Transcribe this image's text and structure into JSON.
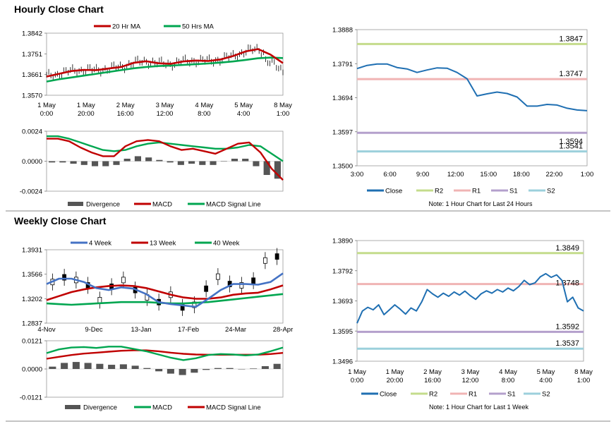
{
  "sections": {
    "hourly_title": "Hourly Close Chart",
    "weekly_title": "Weekly Close Chart"
  },
  "colors": {
    "ma_fast": "#c00000",
    "ma_slow": "#00a650",
    "ma_4week": "#4472c4",
    "close_line": "#1f6fb2",
    "r2": "#c4dc8c",
    "r1": "#f0b4b4",
    "s1": "#b4a0cc",
    "s2": "#9cd0dc",
    "divergence": "#555555"
  },
  "chart_data": [
    {
      "id": "hourly_price",
      "type": "line",
      "legend": [
        "20 Hr MA",
        "50 Hrs MA"
      ],
      "yticks": [
        "1.3842",
        "1.3751",
        "1.3661",
        "1.3570"
      ],
      "ylim": [
        1.357,
        1.3842
      ],
      "xticks": [
        [
          "1 May",
          "0:00"
        ],
        [
          "1 May",
          "20:00"
        ],
        [
          "2 May",
          "16:00"
        ],
        [
          "3 May",
          "12:00"
        ],
        [
          "4 May",
          "8:00"
        ],
        [
          "5 May",
          "4:00"
        ],
        [
          "8 May",
          "1:00"
        ]
      ],
      "series": [
        {
          "name": "20 Hr MA",
          "values": [
            1.3652,
            1.3664,
            1.3676,
            1.3681,
            1.368,
            1.3687,
            1.3694,
            1.3712,
            1.3719,
            1.371,
            1.3708,
            1.3718,
            1.3722,
            1.372,
            1.3727,
            1.3742,
            1.3762,
            1.3772,
            1.3748,
            1.3711
          ]
        },
        {
          "name": "50 Hrs MA",
          "values": [
            1.363,
            1.364,
            1.3648,
            1.3656,
            1.3664,
            1.3672,
            1.368,
            1.3688,
            1.3694,
            1.3698,
            1.37,
            1.3703,
            1.3706,
            1.3709,
            1.3713,
            1.3718,
            1.3725,
            1.3732,
            1.3735,
            1.3733
          ]
        }
      ]
    },
    {
      "id": "hourly_macd",
      "type": "line",
      "legend": [
        "Divergence",
        "MACD",
        "MACD Signal Line"
      ],
      "yticks": [
        "0.0024",
        "0.0000",
        "-0.0024"
      ],
      "ylim": [
        -0.0024,
        0.0024
      ],
      "series": [
        {
          "name": "MACD",
          "values": [
            0.0018,
            0.0018,
            0.0016,
            0.0011,
            0.0007,
            0.0004,
            0.0004,
            0.0012,
            0.0016,
            0.0017,
            0.0016,
            0.0012,
            0.0009,
            0.001,
            0.0008,
            0.0006,
            0.001,
            0.0014,
            0.0015,
            0.0007,
            -0.0006,
            -0.0015
          ]
        },
        {
          "name": "MACD Signal Line",
          "values": [
            0.002,
            0.002,
            0.0018,
            0.0015,
            0.0012,
            0.0009,
            0.0008,
            0.0009,
            0.0012,
            0.0014,
            0.0015,
            0.0014,
            0.0013,
            0.0012,
            0.0011,
            0.001,
            0.001,
            0.0011,
            0.0013,
            0.0012,
            0.0006,
            0.0
          ]
        },
        {
          "name": "Divergence",
          "values": [
            -0.0001,
            -0.0001,
            -0.0002,
            -0.0003,
            -0.0004,
            -0.0004,
            -0.0003,
            0.0002,
            0.0004,
            0.0003,
            0.0001,
            -0.0001,
            -0.0003,
            -0.0002,
            -0.0003,
            -0.0003,
            0.0,
            0.0002,
            0.0002,
            -0.0004,
            -0.0011,
            -0.0014
          ]
        }
      ]
    },
    {
      "id": "hourly_24h",
      "type": "line",
      "yticks": [
        "1.3888",
        "1.3791",
        "1.3694",
        "1.3597",
        "1.3500"
      ],
      "ylim": [
        1.35,
        1.3888
      ],
      "xticks": [
        "3:00",
        "6:00",
        "9:00",
        "12:00",
        "15:00",
        "18:00",
        "22:00",
        "1:00"
      ],
      "levels": [
        {
          "name": "R2",
          "value": 1.3847,
          "label": "1.3847"
        },
        {
          "name": "R1",
          "value": 1.3747,
          "label": "1.3747"
        },
        {
          "name": "S1",
          "value": 1.3594,
          "label": "1.3594"
        },
        {
          "name": "S2",
          "value": 1.3541,
          "label": "1.3541"
        }
      ],
      "legend": [
        "Close",
        "R2",
        "R1",
        "S1",
        "S2"
      ],
      "note": "Note: 1 Hour Chart for Last 24 Hours",
      "series": [
        {
          "name": "Close",
          "values": [
            1.3777,
            1.3786,
            1.379,
            1.379,
            1.378,
            1.3776,
            1.3766,
            1.3773,
            1.3779,
            1.3778,
            1.3766,
            1.3748,
            1.3699,
            1.3705,
            1.371,
            1.3706,
            1.3696,
            1.367,
            1.367,
            1.3675,
            1.3673,
            1.3664,
            1.3659,
            1.3657
          ]
        }
      ]
    },
    {
      "id": "weekly_price",
      "type": "line",
      "legend": [
        "4 Week",
        "13 Week",
        "40 Week"
      ],
      "yticks": [
        "1.3931",
        "1.3566",
        "1.3202",
        "1.2837"
      ],
      "ylim": [
        1.2837,
        1.3931
      ],
      "xticks": [
        "4-Nov",
        "9-Dec",
        "13-Jan",
        "17-Feb",
        "24-Mar",
        "28-Apr"
      ],
      "series": [
        {
          "name": "4 Week",
          "values": [
            1.342,
            1.35,
            1.35,
            1.345,
            1.336,
            1.333,
            1.337,
            1.335,
            1.327,
            1.315,
            1.312,
            1.31,
            1.308,
            1.32,
            1.333,
            1.342,
            1.342,
            1.341,
            1.345,
            1.358
          ]
        },
        {
          "name": "13 Week",
          "values": [
            1.318,
            1.324,
            1.33,
            1.334,
            1.337,
            1.339,
            1.34,
            1.339,
            1.336,
            1.331,
            1.326,
            1.322,
            1.32,
            1.32,
            1.322,
            1.326,
            1.328,
            1.329,
            1.334,
            1.34
          ]
        },
        {
          "name": "40 Week",
          "values": [
            1.313,
            1.312,
            1.311,
            1.312,
            1.313,
            1.314,
            1.315,
            1.315,
            1.315,
            1.314,
            1.313,
            1.313,
            1.314,
            1.315,
            1.317,
            1.319,
            1.321,
            1.323,
            1.325,
            1.327
          ]
        },
        {
          "name": "Weekly candles",
          "values": [
            1.345,
            1.352,
            1.348,
            1.34,
            1.318,
            1.338,
            1.348,
            1.333,
            1.322,
            1.315,
            1.326,
            1.307,
            1.311,
            1.335,
            1.353,
            1.342,
            1.34,
            1.347,
            1.377,
            1.383
          ]
        }
      ]
    },
    {
      "id": "weekly_macd",
      "type": "line",
      "legend": [
        "Divergence",
        "MACD",
        "MACD Signal Line"
      ],
      "yticks": [
        "0.0121",
        "0.0000",
        "-0.0121"
      ],
      "ylim": [
        -0.0121,
        0.0121
      ],
      "series": [
        {
          "name": "MACD",
          "values": [
            0.0068,
            0.0084,
            0.0092,
            0.0094,
            0.009,
            0.0096,
            0.0096,
            0.0086,
            0.0076,
            0.0062,
            0.0048,
            0.0038,
            0.0046,
            0.006,
            0.0064,
            0.0062,
            0.0058,
            0.0062,
            0.0076,
            0.0092
          ]
        },
        {
          "name": "MACD Signal Line",
          "values": [
            0.0044,
            0.0052,
            0.006,
            0.0066,
            0.007,
            0.0074,
            0.0078,
            0.008,
            0.008,
            0.0076,
            0.007,
            0.0065,
            0.0062,
            0.0061,
            0.0061,
            0.0061,
            0.0061,
            0.0061,
            0.0064,
            0.0069
          ]
        },
        {
          "name": "Divergence",
          "values": [
            0.001,
            0.0026,
            0.003,
            0.0026,
            0.0022,
            0.0018,
            0.002,
            0.0014,
            0.0004,
            -0.001,
            -0.002,
            -0.0026,
            -0.0016,
            -0.0004,
            0.0004,
            0.0004,
            0.0,
            0.0002,
            0.0012,
            0.0022
          ]
        }
      ]
    },
    {
      "id": "weekly_1week",
      "type": "line",
      "yticks": [
        "1.3890",
        "1.3792",
        "1.3693",
        "1.3595",
        "1.3496"
      ],
      "ylim": [
        1.3496,
        1.389
      ],
      "xticks": [
        [
          "1 May",
          "0:00"
        ],
        [
          "1 May",
          "20:00"
        ],
        [
          "2 May",
          "16:00"
        ],
        [
          "3 May",
          "12:00"
        ],
        [
          "4 May",
          "8:00"
        ],
        [
          "5 May",
          "4:00"
        ],
        [
          "8 May",
          "1:00"
        ]
      ],
      "levels": [
        {
          "name": "R2",
          "value": 1.3849,
          "label": "1.3849"
        },
        {
          "name": "R1",
          "value": 1.3748,
          "label": "1.3748"
        },
        {
          "name": "S1",
          "value": 1.3592,
          "label": "1.3592"
        },
        {
          "name": "S2",
          "value": 1.3537,
          "label": "1.3537"
        }
      ],
      "legend": [
        "Close",
        "R2",
        "R1",
        "S1",
        "S2"
      ],
      "note": "Note: 1 Hour Chart for Last 1 Week",
      "series": [
        {
          "name": "Close",
          "values": [
            1.362,
            1.366,
            1.3672,
            1.3664,
            1.368,
            1.3648,
            1.3664,
            1.368,
            1.3666,
            1.365,
            1.367,
            1.366,
            1.369,
            1.373,
            1.3716,
            1.3705,
            1.3718,
            1.3708,
            1.3722,
            1.3712,
            1.3725,
            1.371,
            1.3698,
            1.3716,
            1.3726,
            1.3718,
            1.373,
            1.3722,
            1.3735,
            1.3726,
            1.374,
            1.376,
            1.3746,
            1.3752,
            1.3772,
            1.3782,
            1.377,
            1.3778,
            1.376,
            1.369,
            1.3705,
            1.367,
            1.366
          ]
        }
      ]
    }
  ]
}
